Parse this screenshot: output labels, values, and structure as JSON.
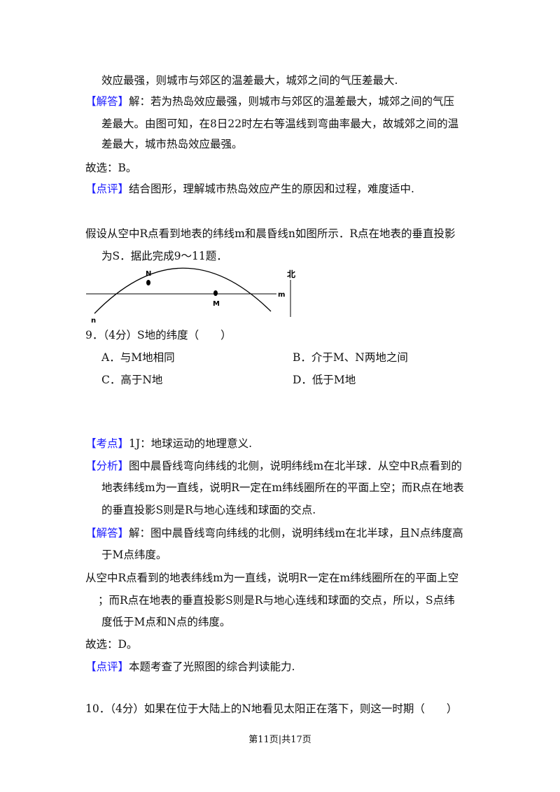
{
  "prev": {
    "cont": "效应最强，则城市与郊区的温差最大，城郊之间的气压差最大.",
    "answer_tag": "【解答】",
    "answer": [
      "解：若为热岛效应最强，则城市与郊区的温差最大，城郊之间的气压",
      "差最大。由图可知，在8日22时左右等温线到弯曲率最大，故城郊之间的温",
      "差最大，城市热岛效应最强。"
    ],
    "choice": "故选：B。",
    "comment_tag": "【点评】",
    "comment": "结合图形，理解城市热岛效应产生的原因和过程，难度适中."
  },
  "intro": [
    "假设从空中R点看到地表的纬线m和晨昏线n如图所示．R点在地表的垂直投影",
    "为S．据此完成9～11题．"
  ],
  "diagram": {
    "labels": {
      "N": "N",
      "M": "M",
      "m": "m",
      "n": "n",
      "north": "北"
    }
  },
  "q9": {
    "stem": "9．（4分）S地的纬度（　　）",
    "options": [
      "A．与M地相同",
      "B．介于M、N两地之间",
      "C．高于N地",
      "D．低于M地"
    ]
  },
  "q9_solution": {
    "point_tag": "【考点】",
    "point": "1J：地球运动的地理意义.",
    "analysis_tag": "【分析】",
    "analysis": [
      "图中晨昏线弯向纬线的北侧，说明纬线m在北半球．从空中R点看到的",
      "地表纬线m为一直线，说明R一定在m纬线圈所在的平面上空；而R点在地表",
      "的垂直投影S则是R与地心连线和球面的交点."
    ],
    "answer_tag": "【解答】",
    "answer": [
      "解：图中晨昏线弯向纬线的北侧，说明纬线m在北半球，且N点纬度高",
      "于M点纬度。"
    ],
    "extra": [
      "从空中R点看到的地表纬线m为一直线，说明R一定在m纬线圈所在的平面上空",
      "；而R点在地表的垂直投影S则是R与地心连线和球面的交点，所以，S点纬",
      "度低于M点和N点的纬度。"
    ],
    "choice": "故选：D。",
    "comment_tag": "【点评】",
    "comment": "本题考查了光照图的综合判读能力."
  },
  "q10": {
    "stem": "10．（4分）如果在位于大陆上的N地看见太阳正在落下，则这一时期（　　）"
  },
  "footer": "第11页|共17页",
  "colors": {
    "tag": "#1a1aff",
    "text": "#111111"
  }
}
